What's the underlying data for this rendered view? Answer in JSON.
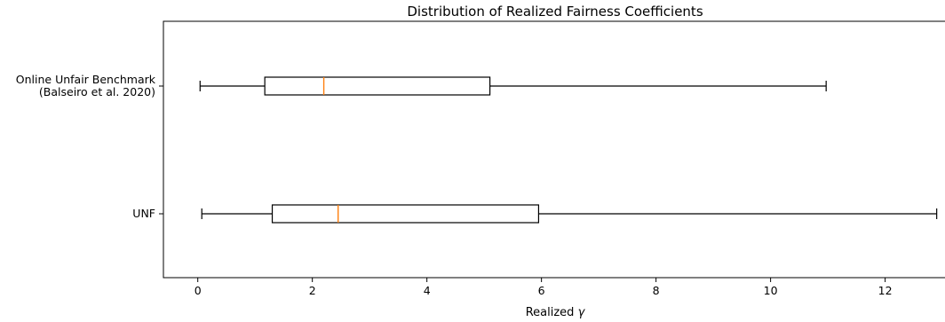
{
  "chart_data": {
    "type": "boxplot",
    "orientation": "horizontal",
    "title": "Distribution of Realized Fairness Coefficients",
    "xlabel_text": "Realized ",
    "xlabel_symbol": "γ",
    "xlim": [
      -0.6,
      13.2
    ],
    "xticks": [
      0,
      2,
      4,
      6,
      8,
      10,
      12
    ],
    "grid": false,
    "box_color": "#000000",
    "median_color": "#ff7f0e",
    "categories": [
      {
        "label_lines": [
          "Online Unfair Benchmark",
          "(Balseiro et al. 2020)"
        ],
        "whisker_low": 0.04,
        "q1": 1.17,
        "median": 2.2,
        "q3": 5.1,
        "whisker_high": 10.97
      },
      {
        "label_lines": [
          "UNF"
        ],
        "whisker_low": 0.07,
        "q1": 1.3,
        "median": 2.45,
        "q3": 5.95,
        "whisker_high": 12.9
      }
    ]
  }
}
